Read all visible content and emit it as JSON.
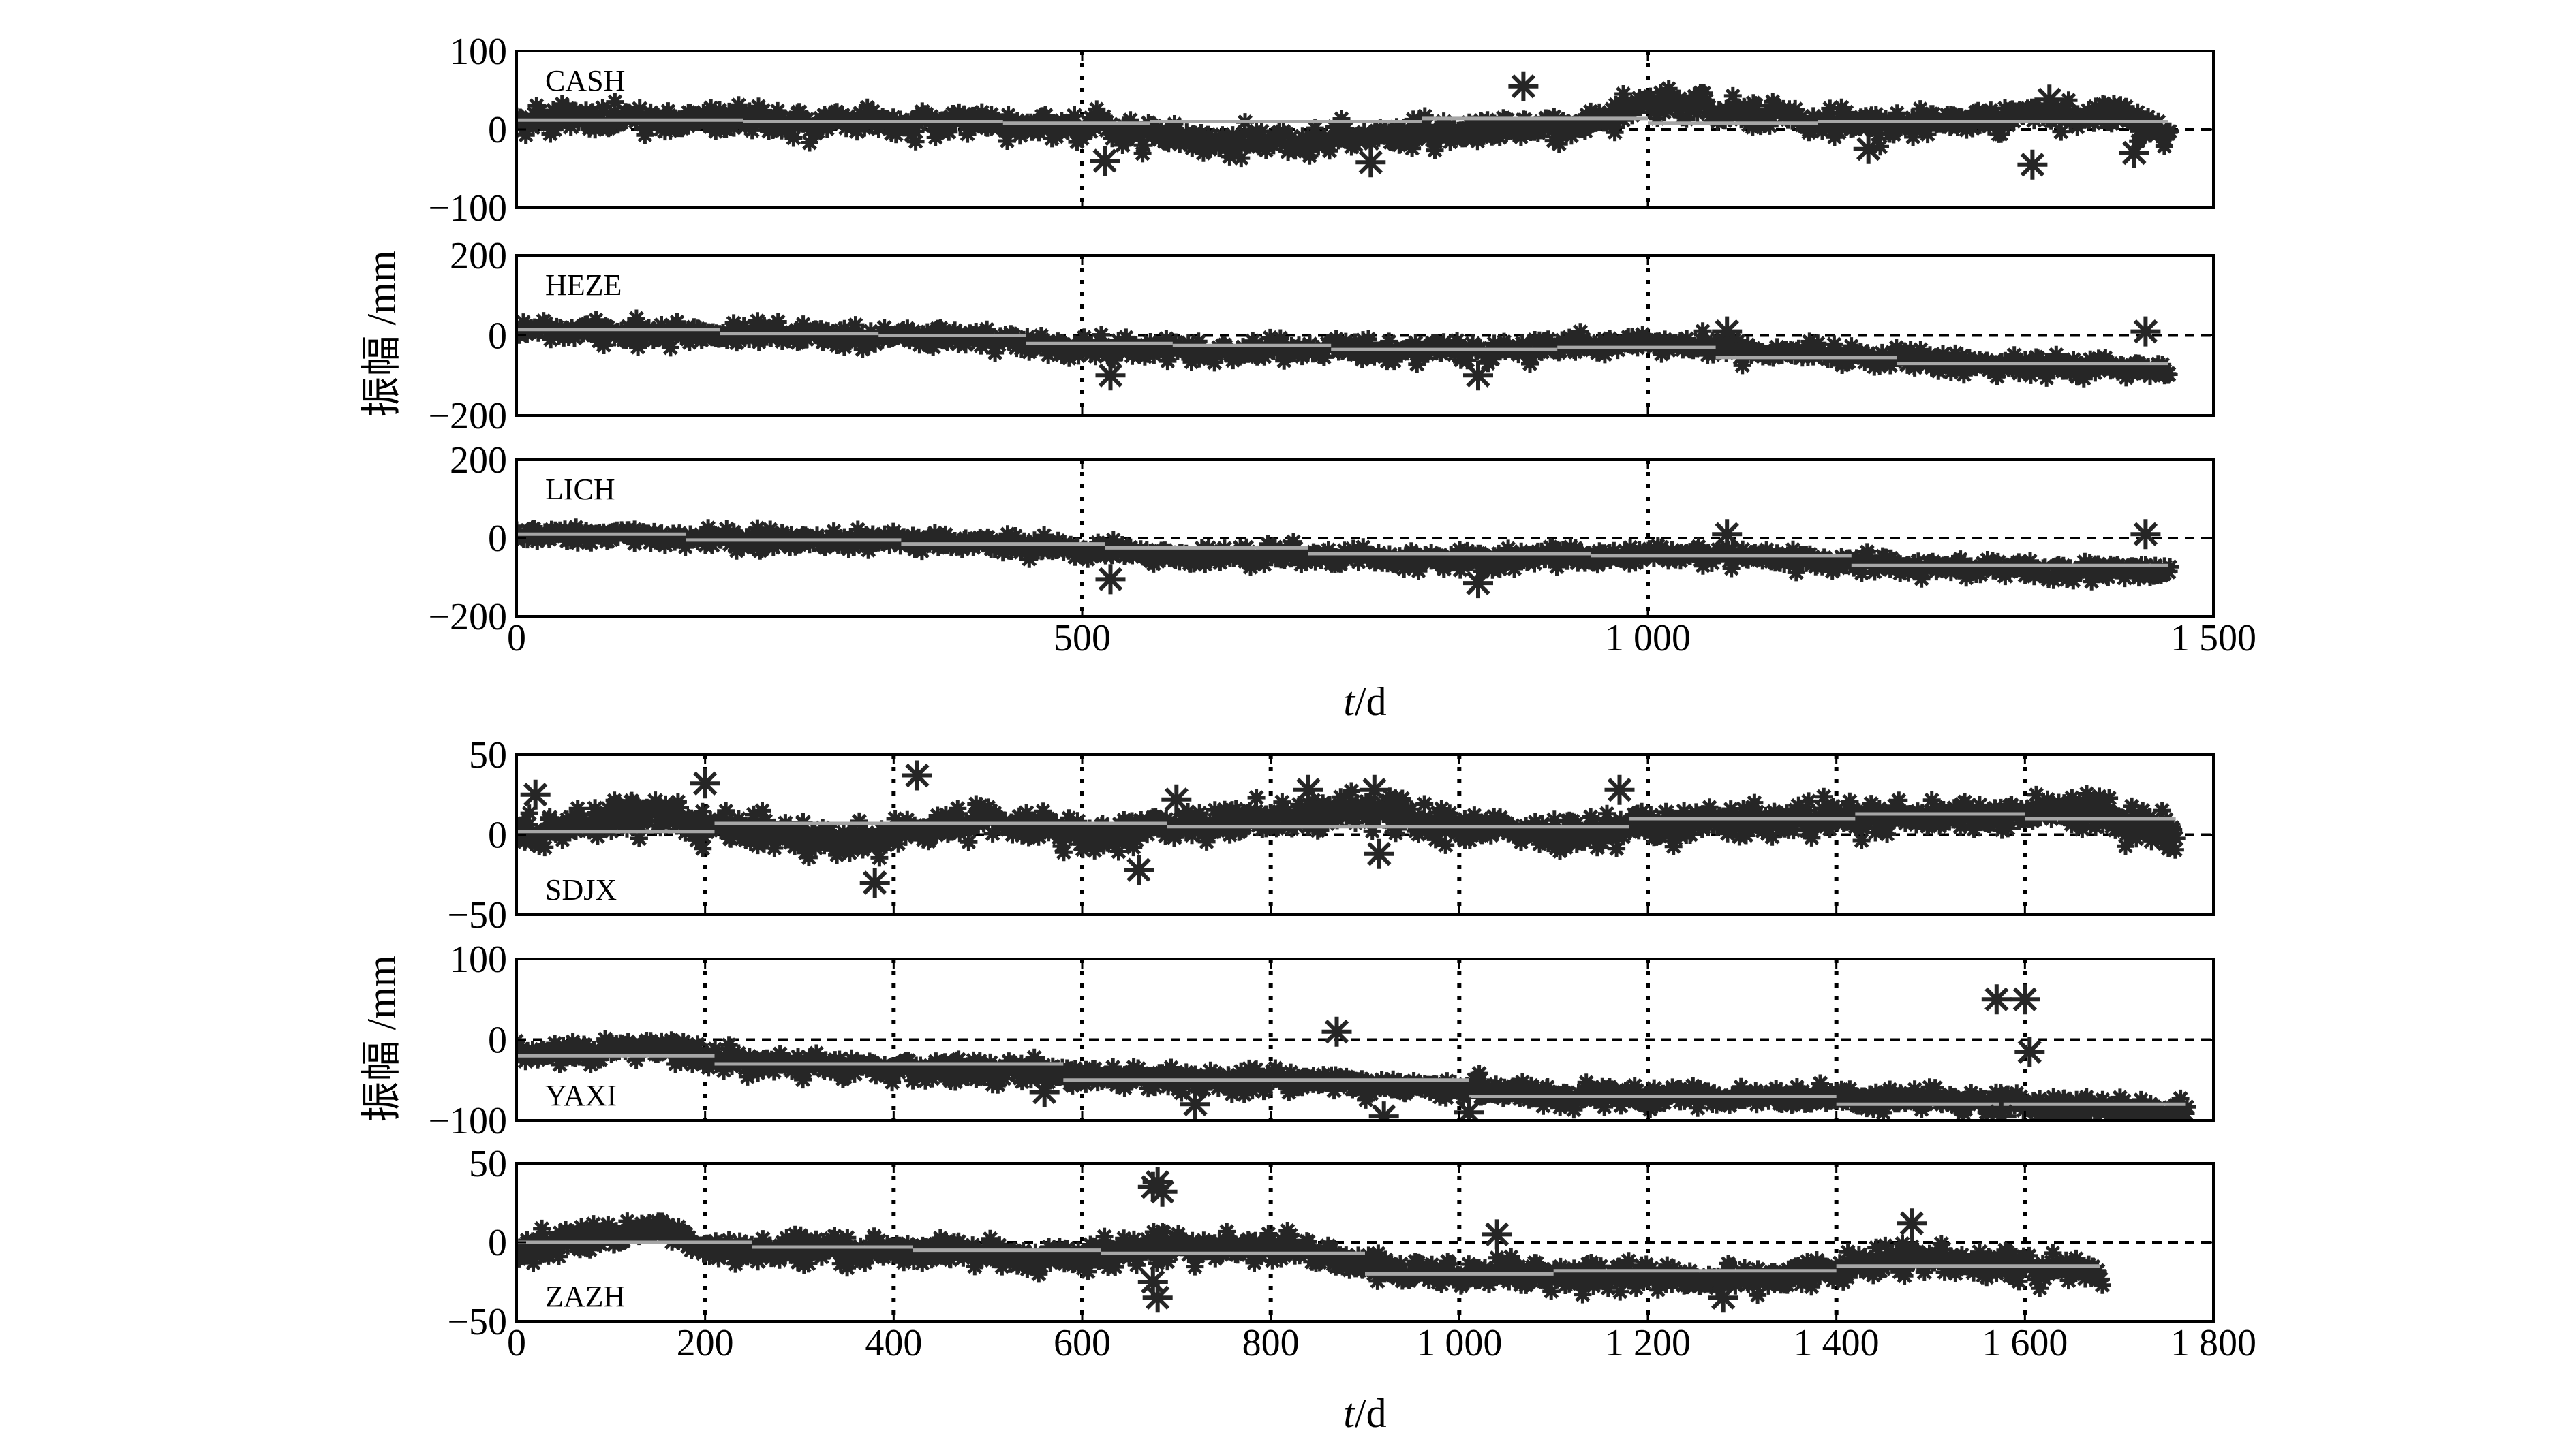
{
  "chart_data": [
    {
      "type": "scatter",
      "xlabel_var": "t",
      "xlabel_unit": "/d",
      "ylabel": "振幅 /mm",
      "xlim": [
        0,
        1500
      ],
      "xticks": [
        0,
        500,
        1000,
        1500
      ],
      "xtick_labels": [
        "0",
        "500",
        "1 000",
        "1 500"
      ],
      "vlines": [
        500,
        1000
      ],
      "panels": [
        {
          "label": "CASH",
          "ylim": [
            -100,
            100
          ],
          "yticks": [
            100,
            0,
            -100
          ],
          "ytick_labels": [
            "100",
            "0",
            "−100"
          ],
          "label_pos": "top-left",
          "x_end": 1460,
          "noise": 10,
          "marker_offset": 16,
          "trend": [
            [
              0,
              10
            ],
            [
              200,
              15
            ],
            [
              400,
              5
            ],
            [
              500,
              3
            ],
            [
              650,
              -20
            ],
            [
              800,
              -5
            ],
            [
              950,
              5
            ],
            [
              1000,
              40
            ],
            [
              1050,
              25
            ],
            [
              1200,
              5
            ],
            [
              1400,
              25
            ],
            [
              1460,
              -10
            ]
          ],
          "steps": [
            [
              0,
              200,
              12
            ],
            [
              200,
              430,
              10
            ],
            [
              430,
              560,
              8
            ],
            [
              560,
              800,
              10
            ],
            [
              800,
              1000,
              14
            ],
            [
              1000,
              1150,
              8
            ],
            [
              1150,
              1460,
              10
            ]
          ],
          "outliers": [
            [
              520,
              -40
            ],
            [
              755,
              -42
            ],
            [
              890,
              55
            ],
            [
              1195,
              -25
            ],
            [
              1340,
              -45
            ],
            [
              1355,
              38
            ],
            [
              1430,
              -30
            ]
          ]
        },
        {
          "label": "HEZE",
          "ylim": [
            -200,
            200
          ],
          "yticks": [
            200,
            0,
            -200
          ],
          "ytick_labels": [
            "200",
            "0",
            "−200"
          ],
          "label_pos": "top-left",
          "x_end": 1460,
          "noise": 15,
          "marker_offset": 22,
          "trend": [
            [
              0,
              10
            ],
            [
              200,
              5
            ],
            [
              400,
              -10
            ],
            [
              600,
              -40
            ],
            [
              700,
              -30
            ],
            [
              800,
              -40
            ],
            [
              1000,
              -20
            ],
            [
              1100,
              -40
            ],
            [
              1250,
              -65
            ],
            [
              1460,
              -90
            ]
          ],
          "steps": [
            [
              0,
              180,
              15
            ],
            [
              180,
              320,
              5
            ],
            [
              320,
              450,
              0
            ],
            [
              450,
              580,
              -20
            ],
            [
              580,
              720,
              -25
            ],
            [
              720,
              920,
              -35
            ],
            [
              920,
              1060,
              -30
            ],
            [
              1060,
              1220,
              -55
            ],
            [
              1220,
              1460,
              -70
            ]
          ],
          "outliers": [
            [
              525,
              -100
            ],
            [
              850,
              -100
            ],
            [
              1070,
              10
            ],
            [
              1440,
              10
            ]
          ]
        },
        {
          "label": "LICH",
          "ylim": [
            -200,
            200
          ],
          "yticks": [
            200,
            0,
            -200
          ],
          "ytick_labels": [
            "200",
            "0",
            "−200"
          ],
          "label_pos": "top-left",
          "x_end": 1460,
          "noise": 15,
          "marker_offset": 22,
          "trend": [
            [
              0,
              10
            ],
            [
              200,
              0
            ],
            [
              400,
              -10
            ],
            [
              600,
              -50
            ],
            [
              700,
              -40
            ],
            [
              800,
              -60
            ],
            [
              1000,
              -40
            ],
            [
              1100,
              -50
            ],
            [
              1250,
              -70
            ],
            [
              1460,
              -90
            ]
          ],
          "steps": [
            [
              0,
              150,
              10
            ],
            [
              150,
              340,
              -5
            ],
            [
              340,
              520,
              -15
            ],
            [
              520,
              700,
              -25
            ],
            [
              700,
              950,
              -40
            ],
            [
              950,
              1180,
              -45
            ],
            [
              1180,
              1460,
              -70
            ]
          ],
          "outliers": [
            [
              525,
              -105
            ],
            [
              850,
              -115
            ],
            [
              1070,
              10
            ],
            [
              1440,
              10
            ]
          ]
        }
      ]
    },
    {
      "type": "scatter",
      "xlabel_var": "t",
      "xlabel_unit": "/d",
      "ylabel": "振幅 /mm",
      "xlim": [
        0,
        1800
      ],
      "xticks": [
        0,
        200,
        400,
        600,
        800,
        1000,
        1200,
        1400,
        1600,
        1800
      ],
      "xtick_labels": [
        "0",
        "200",
        "400",
        "600",
        "800",
        "1 000",
        "1 200",
        "1 400",
        "1 600",
        "1 800"
      ],
      "vlines": [
        200,
        400,
        600,
        800,
        1000,
        1200,
        1400,
        1600
      ],
      "panels": [
        {
          "label": "SDJX",
          "ylim": [
            -50,
            50
          ],
          "yticks": [
            50,
            0,
            -50
          ],
          "ytick_labels": [
            "50",
            "0",
            "−50"
          ],
          "label_pos": "bottom-left",
          "x_end": 1760,
          "noise": 6,
          "marker_offset": 9,
          "trend": [
            [
              0,
              0
            ],
            [
              150,
              15
            ],
            [
              200,
              5
            ],
            [
              350,
              -5
            ],
            [
              500,
              10
            ],
            [
              600,
              0
            ],
            [
              800,
              10
            ],
            [
              900,
              15
            ],
            [
              1000,
              5
            ],
            [
              1100,
              0
            ],
            [
              1300,
              10
            ],
            [
              1500,
              10
            ],
            [
              1650,
              15
            ],
            [
              1760,
              0
            ]
          ],
          "steps": [
            [
              0,
              210,
              2
            ],
            [
              210,
              690,
              7
            ],
            [
              690,
              1180,
              5
            ],
            [
              1180,
              1420,
              10
            ],
            [
              1420,
              1600,
              13
            ],
            [
              1600,
              1760,
              10
            ]
          ],
          "outliers": [
            [
              20,
              25
            ],
            [
              200,
              32
            ],
            [
              380,
              -30
            ],
            [
              425,
              37
            ],
            [
              660,
              -22
            ],
            [
              700,
              22
            ],
            [
              840,
              28
            ],
            [
              910,
              28
            ],
            [
              915,
              -12
            ],
            [
              1170,
              28
            ]
          ]
        },
        {
          "label": "YAXI",
          "ylim": [
            -100,
            100
          ],
          "yticks": [
            100,
            0,
            -100
          ],
          "ytick_labels": [
            "100",
            "0",
            "−100"
          ],
          "label_pos": "bottom-left",
          "x_end": 1770,
          "noise": 8,
          "marker_offset": 12,
          "trend": [
            [
              0,
              -20
            ],
            [
              150,
              -10
            ],
            [
              250,
              -30
            ],
            [
              400,
              -35
            ],
            [
              600,
              -45
            ],
            [
              800,
              -50
            ],
            [
              1000,
              -60
            ],
            [
              1100,
              -70
            ],
            [
              1300,
              -70
            ],
            [
              1500,
              -75
            ],
            [
              1600,
              -80
            ],
            [
              1770,
              -90
            ]
          ],
          "steps": [
            [
              0,
              210,
              -20
            ],
            [
              210,
              580,
              -30
            ],
            [
              580,
              1010,
              -50
            ],
            [
              1010,
              1400,
              -70
            ],
            [
              1400,
              1770,
              -80
            ]
          ],
          "outliers": [
            [
              560,
              -65
            ],
            [
              720,
              -80
            ],
            [
              870,
              10
            ],
            [
              920,
              -95
            ],
            [
              1010,
              -90
            ],
            [
              1570,
              50
            ],
            [
              1600,
              50
            ],
            [
              1605,
              -15
            ],
            [
              1575,
              -95
            ]
          ]
        },
        {
          "label": "ZAZH",
          "ylim": [
            -50,
            50
          ],
          "yticks": [
            50,
            0,
            -50
          ],
          "ytick_labels": [
            "50",
            "0",
            "−50"
          ],
          "label_pos": "bottom-left",
          "x_end": 1680,
          "noise": 5,
          "marker_offset": 8,
          "trend": [
            [
              0,
              -5
            ],
            [
              150,
              10
            ],
            [
              200,
              -5
            ],
            [
              400,
              -5
            ],
            [
              600,
              -10
            ],
            [
              700,
              0
            ],
            [
              850,
              -5
            ],
            [
              950,
              -20
            ],
            [
              1100,
              -20
            ],
            [
              1300,
              -25
            ],
            [
              1500,
              -10
            ],
            [
              1680,
              -20
            ]
          ],
          "steps": [
            [
              0,
              250,
              0
            ],
            [
              250,
              420,
              -3
            ],
            [
              420,
              620,
              -5
            ],
            [
              620,
              900,
              -7
            ],
            [
              900,
              1100,
              -20
            ],
            [
              1100,
              1400,
              -18
            ],
            [
              1400,
              1680,
              -15
            ]
          ],
          "outliers": [
            [
              675,
              35
            ],
            [
              680,
              38
            ],
            [
              685,
              32
            ],
            [
              675,
              -25
            ],
            [
              680,
              -35
            ],
            [
              1040,
              5
            ],
            [
              1280,
              -35
            ],
            [
              1480,
              12
            ]
          ]
        }
      ]
    }
  ]
}
